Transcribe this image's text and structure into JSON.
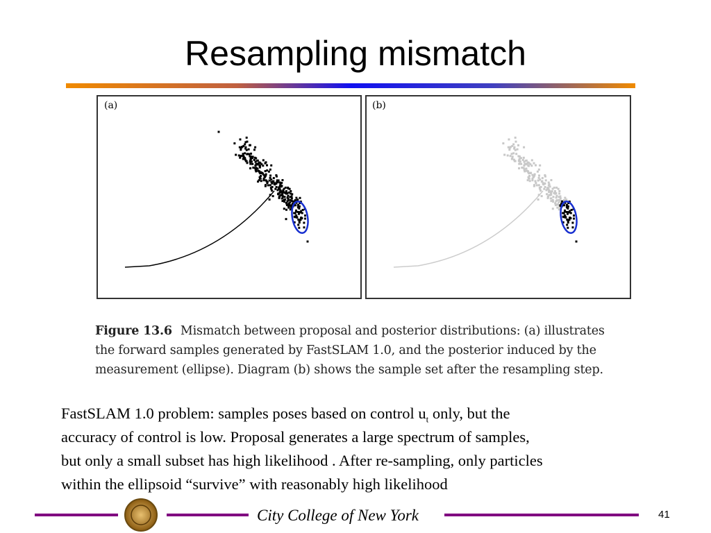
{
  "title": "Resampling mismatch",
  "figure": {
    "panels": [
      "(a)",
      "(b)"
    ],
    "caption": {
      "label": "Figure 13.6",
      "lines": [
        "Mismatch between proposal and posterior distributions: (a) illustrates",
        "the forward samples generated by FastSLAM 1.0, and the posterior induced by the",
        "measurement (ellipse). Diagram (b) shows the sample set after the resampling step."
      ]
    }
  },
  "body": {
    "lines": [
      [
        "FastSLAM 1.0 problem: samples poses based on control u",
        "t",
        " only, but the"
      ],
      [
        "accuracy of control is low. Proposal generates a large spectrum of samples,"
      ],
      [
        "but only a small subset has high likelihood . After re-sampling, only particles"
      ],
      [
        "within the ellipsoid ",
        "“survive”",
        " with reasonably high likelihood"
      ]
    ]
  },
  "footer": {
    "institution": "City College of New York",
    "page_number": "41"
  }
}
